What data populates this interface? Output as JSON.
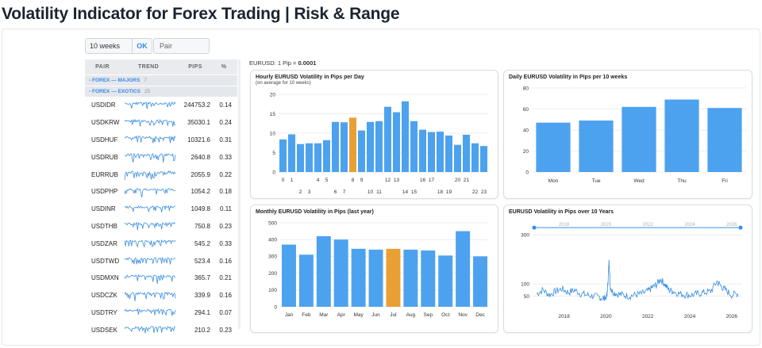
{
  "page": {
    "title": "Volatility Indicator for Forex Trading | Risk & Range"
  },
  "controls": {
    "weeks_value": "10 weeks",
    "ok_label": "OK",
    "pair_placeholder": "Pair"
  },
  "table": {
    "headers": {
      "pair": "PAIR",
      "trend": "TREND",
      "pips": "PIPS",
      "pct": "%"
    },
    "groups": [
      {
        "label": "-  FOREX — MAJORS",
        "count": "7"
      },
      {
        "label": "-  FOREX — EXOTICS",
        "count": "25"
      }
    ],
    "rows": [
      {
        "pair": "USDIDR",
        "pips": "244753.2",
        "pct": "0.14"
      },
      {
        "pair": "USDKRW",
        "pips": "35030.1",
        "pct": "0.24"
      },
      {
        "pair": "USDHUF",
        "pips": "10321.6",
        "pct": "0.31"
      },
      {
        "pair": "USDRUB",
        "pips": "2640.8",
        "pct": "0.33"
      },
      {
        "pair": "EURRUB",
        "pips": "2055.9",
        "pct": "0.22"
      },
      {
        "pair": "USDPHP",
        "pips": "1054.2",
        "pct": "0.18"
      },
      {
        "pair": "USDINR",
        "pips": "1049.8",
        "pct": "0.11"
      },
      {
        "pair": "USDTHB",
        "pips": "750.8",
        "pct": "0.23"
      },
      {
        "pair": "USDZAR",
        "pips": "545.2",
        "pct": "0.33"
      },
      {
        "pair": "USDTWD",
        "pips": "523.4",
        "pct": "0.16"
      },
      {
        "pair": "USDMXN",
        "pips": "365.7",
        "pct": "0.21"
      },
      {
        "pair": "USDCZK",
        "pips": "339.9",
        "pct": "0.16"
      },
      {
        "pair": "USDTRY",
        "pips": "294.1",
        "pct": "0.07"
      },
      {
        "pair": "USDSEK",
        "pips": "210.2",
        "pct": "0.23"
      }
    ]
  },
  "pip_note": {
    "prefix": "EURUSD: 1 Pip = ",
    "value": "0.0001"
  },
  "colors": {
    "bar": "#4da2ef",
    "highlight": "#e8a035",
    "line": "#3a8fe0",
    "grid": "#e6e9ed",
    "axis_text": "#333333"
  },
  "chart_data": [
    {
      "type": "bar",
      "title": "Hourly EURUSD Volatility in Pips per Day",
      "subtitle": "(on average for 10 weeks)",
      "categories": [
        "0",
        "1",
        "2",
        "3",
        "4",
        "5",
        "6",
        "7",
        "8",
        "9",
        "10",
        "11",
        "12",
        "13",
        "14",
        "15",
        "16",
        "17",
        "18",
        "19",
        "20",
        "21",
        "22",
        "23"
      ],
      "values": [
        8.4,
        9.7,
        7.2,
        7.4,
        7.4,
        8.2,
        12.9,
        12.8,
        14.0,
        10.7,
        12.9,
        13.1,
        16.8,
        15.4,
        18.2,
        13.1,
        10.9,
        10.3,
        10.4,
        9.4,
        7.0,
        9.6,
        7.4,
        6.7
      ],
      "highlight_index": 8,
      "ylim": [
        0,
        20
      ],
      "yticks": [
        0,
        5,
        10,
        15,
        20
      ],
      "xticks_row1": [
        "0",
        "1",
        "4",
        "5",
        "8",
        "9",
        "12",
        "13",
        "16",
        "17",
        "20",
        "21"
      ],
      "xticks_row2": [
        "2",
        "3",
        "6",
        "7",
        "10",
        "11",
        "14",
        "15",
        "18",
        "19",
        "22",
        "23"
      ]
    },
    {
      "type": "bar",
      "title": "Daily EURUSD Volatility in Pips per 10 weeks",
      "categories": [
        "Mon",
        "Tue",
        "Wed",
        "Thu",
        "Fri"
      ],
      "values": [
        47,
        49,
        62,
        69,
        61
      ],
      "ylim": [
        0,
        80
      ],
      "yticks": [
        0,
        20,
        40,
        60,
        80
      ]
    },
    {
      "type": "bar",
      "title": "Monthly EURUSD Volatility in Pips (last year)",
      "categories": [
        "Jan",
        "Feb",
        "Mar",
        "Apr",
        "May",
        "Jun",
        "Jul",
        "Aug",
        "Sep",
        "Oct",
        "Nov",
        "Dec"
      ],
      "values": [
        370,
        310,
        420,
        400,
        345,
        340,
        345,
        340,
        335,
        305,
        450,
        300
      ],
      "highlight_index": 6,
      "ylim": [
        0,
        500
      ],
      "yticks": [
        0,
        100,
        200,
        300,
        400,
        500
      ]
    },
    {
      "type": "line",
      "title": "EURUSD Volatility in Pips over 10 Years",
      "xlim": [
        2016.5,
        2026.5
      ],
      "xticks": [
        "2018",
        "2020",
        "2022",
        "2024",
        "2026"
      ],
      "ylim": [
        0,
        350
      ],
      "yticks": [
        50,
        100,
        300
      ],
      "series": [
        {
          "x": [
            2016.7,
            2017.0,
            2017.3,
            2017.6,
            2017.9,
            2018.2,
            2018.5,
            2018.8,
            2019.1,
            2019.4,
            2019.7,
            2019.9,
            2020.05,
            2020.1,
            2020.15,
            2020.2,
            2020.3,
            2020.5,
            2020.8,
            2021.1,
            2021.4,
            2021.7,
            2022.0,
            2022.2,
            2022.4,
            2022.6,
            2022.8,
            2023.0,
            2023.2,
            2023.5,
            2023.8,
            2024.1,
            2024.4,
            2024.7,
            2025.0,
            2025.3,
            2025.5,
            2025.7,
            2026.0,
            2026.3
          ],
          "y": [
            60,
            75,
            55,
            70,
            80,
            65,
            75,
            60,
            55,
            50,
            45,
            40,
            50,
            110,
            200,
            90,
            70,
            60,
            55,
            50,
            55,
            60,
            70,
            85,
            95,
            120,
            100,
            75,
            70,
            60,
            55,
            55,
            60,
            65,
            70,
            110,
            90,
            75,
            55,
            60
          ]
        }
      ],
      "navigator": {
        "labels": [
          "2018",
          "2020",
          "2022",
          "2024",
          "2026"
        ],
        "value": 330
      }
    }
  ]
}
